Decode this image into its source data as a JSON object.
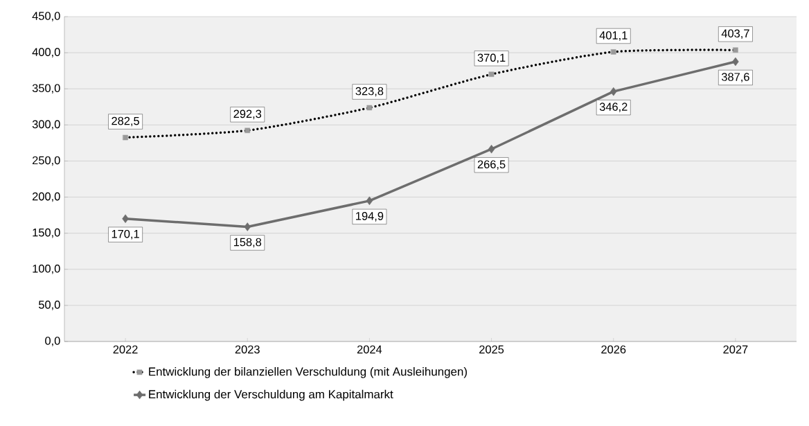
{
  "chart_data": {
    "type": "line",
    "categories": [
      "2022",
      "2023",
      "2024",
      "2025",
      "2026",
      "2027"
    ],
    "series": [
      {
        "name": "Entwicklung der bilanziellen Verschuldung (mit Ausleihungen)",
        "color": "#000000",
        "marker": "square",
        "line_style": "dotted",
        "values": [
          282.5,
          292.3,
          323.8,
          370.1,
          401.1,
          403.7
        ],
        "value_labels": [
          "282,5",
          "292,3",
          "323,8",
          "370,1",
          "401,1",
          "403,7"
        ]
      },
      {
        "name": "Entwicklung der Verschuldung am Kapitalmarkt",
        "color": "#6d6d6d",
        "marker": "diamond",
        "line_style": "solid",
        "values": [
          170.1,
          158.8,
          194.9,
          266.5,
          346.2,
          387.6
        ],
        "value_labels": [
          "170,1",
          "158,8",
          "194,9",
          "266,5",
          "346,2",
          "387,6"
        ]
      }
    ],
    "ylim": [
      0,
      450
    ],
    "yticks": [
      {
        "value": 0,
        "label": "0,0"
      },
      {
        "value": 50,
        "label": "50,0"
      },
      {
        "value": 100,
        "label": "100,0"
      },
      {
        "value": 150,
        "label": "150,0"
      },
      {
        "value": 200,
        "label": "200,0"
      },
      {
        "value": 250,
        "label": "250,0"
      },
      {
        "value": 300,
        "label": "300,0"
      },
      {
        "value": 350,
        "label": "350,0"
      },
      {
        "value": 400,
        "label": "400,0"
      },
      {
        "value": 450,
        "label": "450,0"
      }
    ],
    "grid": "y",
    "legend": "bottom"
  }
}
